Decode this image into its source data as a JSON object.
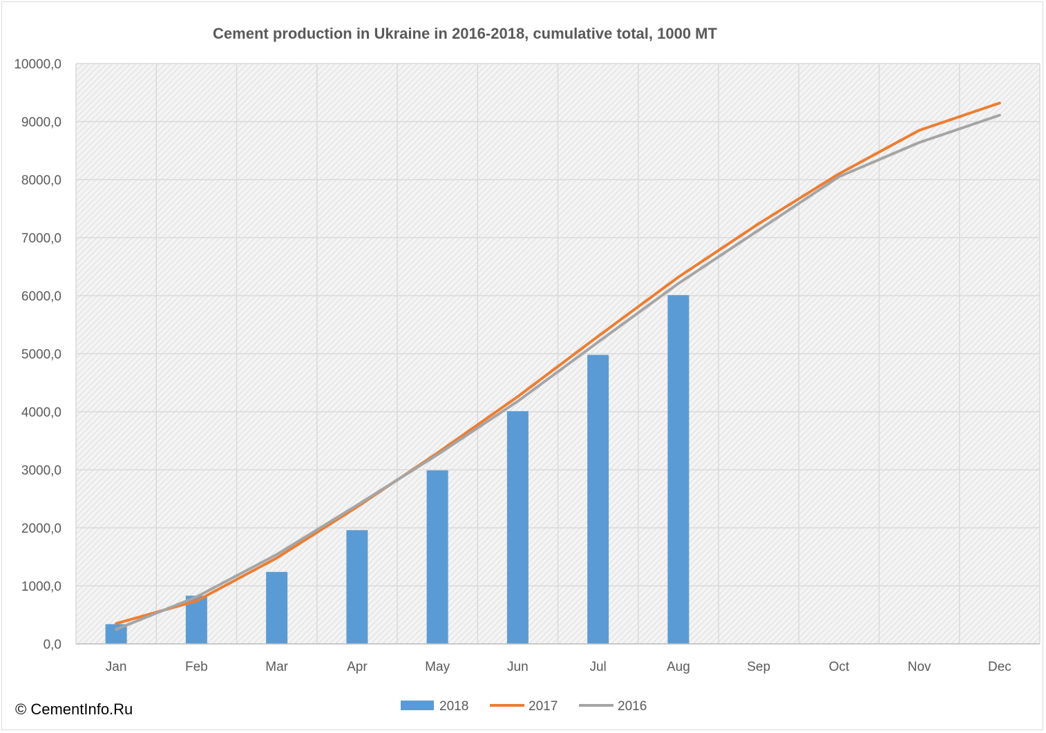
{
  "chart_data": {
    "type": "bar",
    "title": "Cement production in Ukraine in 2016-2018, cumulative total, 1000 MT",
    "categories": [
      "Jan",
      "Feb",
      "Mar",
      "Apr",
      "May",
      "Jun",
      "Jul",
      "Aug",
      "Sep",
      "Oct",
      "Nov",
      "Dec"
    ],
    "ylim": [
      0,
      10000
    ],
    "yticks": [
      "0,0",
      "1000,0",
      "2000,0",
      "3000,0",
      "4000,0",
      "5000,0",
      "6000,0",
      "7000,0",
      "8000,0",
      "9000,0",
      "10000,0"
    ],
    "grid": true,
    "legend_position": "bottom",
    "series": [
      {
        "name": "2018",
        "type": "bar",
        "color": "#5b9bd5",
        "values": [
          340,
          830,
          1240,
          1960,
          2990,
          4010,
          4980,
          6010,
          null,
          null,
          null,
          null
        ]
      },
      {
        "name": "2017",
        "type": "line",
        "color": "#ed7d31",
        "values": [
          350,
          740,
          1480,
          2360,
          3290,
          4260,
          5300,
          6320,
          7240,
          8100,
          8850,
          9320
        ]
      },
      {
        "name": "2016",
        "type": "line",
        "color": "#a5a5a5",
        "values": [
          250,
          810,
          1540,
          2390,
          3260,
          4180,
          5200,
          6210,
          7130,
          8050,
          8640,
          9110
        ]
      }
    ]
  },
  "copyright": "© CementInfo.Ru"
}
